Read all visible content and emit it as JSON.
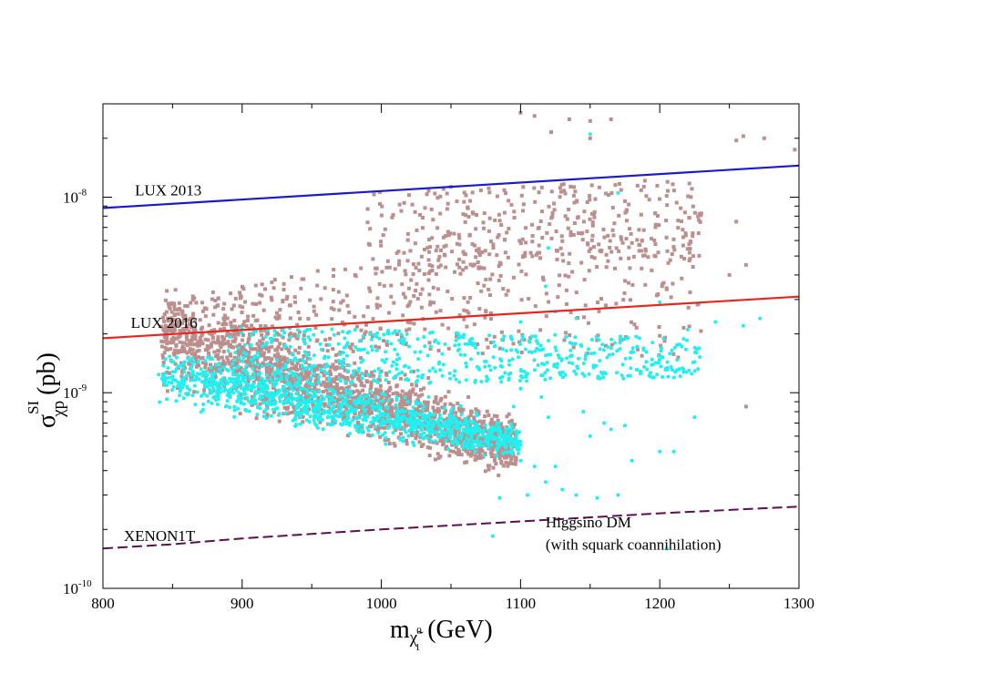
{
  "chart_data": {
    "type": "scatter",
    "title": "",
    "xlabel": "m(GeV)",
    "xlabel_parts": {
      "base": "m",
      "sub": "χ̃",
      "sub_sup": "0",
      "sub_sub": "1",
      "unit": "(GeV)"
    },
    "ylabel": "σ SI χp (pb)",
    "ylabel_parts": {
      "base": "σ",
      "sup": "SI",
      "sub": "χp",
      "unit": "(pb)"
    },
    "xlim": [
      800,
      1300
    ],
    "ylim": [
      1e-10,
      3e-08
    ],
    "yscale": "log",
    "x_ticks": [
      800,
      900,
      1000,
      1100,
      1200,
      1300
    ],
    "x_tick_labels": [
      "800",
      "900",
      "1000",
      "1100",
      "1200",
      "1300"
    ],
    "y_ticks": [
      {
        "value": 1e-10,
        "base": "10",
        "exp": "-10"
      },
      {
        "value": 1e-09,
        "base": "10",
        "exp": "-9"
      },
      {
        "value": 1e-08,
        "base": "10",
        "exp": "-8"
      }
    ],
    "lines": [
      {
        "name": "LUX 2013",
        "color": "#1a1acc",
        "dash": "solid",
        "x": [
          800,
          1300
        ],
        "y": [
          8.8e-09,
          1.45e-08
        ]
      },
      {
        "name": "LUX 2016",
        "color": "#e8251e",
        "dash": "solid",
        "x": [
          800,
          1300
        ],
        "y": [
          1.9e-09,
          3.1e-09
        ]
      },
      {
        "name": "XENON1T",
        "color": "#5a1050",
        "dash": "dashed",
        "x": [
          800,
          850,
          900,
          1000,
          1100,
          1200,
          1300
        ],
        "y": [
          1.6e-10,
          1.68e-10,
          1.8e-10,
          2e-10,
          2.2e-10,
          2.42e-10,
          2.62e-10
        ]
      }
    ],
    "series": [
      {
        "name": "brown points",
        "color": "#bc8f8f",
        "marker": "square",
        "regions": [
          {
            "shape": "band",
            "count": 1800,
            "x": [
              842,
              1097
            ],
            "ycenter": [
              1.9e-09,
              5.3e-10
            ],
            "spread": 0.11
          },
          {
            "shape": "cloud",
            "count": 520,
            "x": [
              842,
              1230
            ],
            "ylow": [
              1.7e-09,
              1.5e-09
            ],
            "yhigh": [
              2.9e-09,
              1.1e-08
            ]
          },
          {
            "shape": "cloud",
            "count": 320,
            "x": [
              990,
              1230
            ],
            "ylow": [
              4e-09,
              5e-09
            ],
            "yhigh": [
              1.1e-08,
              1.25e-08
            ]
          }
        ],
        "extra_points": [
          {
            "x": 1100,
            "y": 2.7e-08
          },
          {
            "x": 1110,
            "y": 2.6e-08
          },
          {
            "x": 1135,
            "y": 2.5e-08
          },
          {
            "x": 1150,
            "y": 2.45e-08
          },
          {
            "x": 1165,
            "y": 2.5e-08
          },
          {
            "x": 1122,
            "y": 2.15e-08
          },
          {
            "x": 1150,
            "y": 2e-08
          },
          {
            "x": 1255,
            "y": 1.95e-08
          },
          {
            "x": 1260,
            "y": 2.05e-08
          },
          {
            "x": 1275,
            "y": 2e-08
          },
          {
            "x": 1297,
            "y": 1.75e-08
          },
          {
            "x": 1255,
            "y": 7.5e-09
          },
          {
            "x": 1262,
            "y": 4.5e-09
          },
          {
            "x": 1262,
            "y": 8.5e-10
          },
          {
            "x": 1250,
            "y": 4e-09
          }
        ]
      },
      {
        "name": "cyan points",
        "color": "#20f0f0",
        "marker": "circle",
        "regions": [
          {
            "shape": "band",
            "count": 1100,
            "x": [
              840,
              1100
            ],
            "ycenter": [
              1.25e-09,
              5.6e-10
            ],
            "spread": 0.07
          },
          {
            "shape": "cloud",
            "count": 560,
            "x": [
              890,
              1232
            ],
            "ylow": [
              1.05e-09,
              1.2e-09
            ],
            "yhigh": [
              2.2e-09,
              1.9e-09
            ]
          }
        ],
        "extra_points": [
          {
            "x": 1085,
            "y": 2.9e-10
          },
          {
            "x": 1080,
            "y": 1.85e-10
          },
          {
            "x": 1100,
            "y": 4.5e-10
          },
          {
            "x": 1105,
            "y": 3e-10
          },
          {
            "x": 1110,
            "y": 4.2e-10
          },
          {
            "x": 1118,
            "y": 3.5e-10
          },
          {
            "x": 1120,
            "y": 7.5e-10
          },
          {
            "x": 1125,
            "y": 4.2e-10
          },
          {
            "x": 1130,
            "y": 3.2e-10
          },
          {
            "x": 1140,
            "y": 3e-10
          },
          {
            "x": 1145,
            "y": 8e-10
          },
          {
            "x": 1150,
            "y": 6e-10
          },
          {
            "x": 1155,
            "y": 2.9e-10
          },
          {
            "x": 1160,
            "y": 7e-10
          },
          {
            "x": 1165,
            "y": 6.5e-10
          },
          {
            "x": 1170,
            "y": 3e-10
          },
          {
            "x": 1175,
            "y": 6.8e-10
          },
          {
            "x": 1180,
            "y": 4.5e-10
          },
          {
            "x": 1200,
            "y": 5e-10
          },
          {
            "x": 1200,
            "y": 2.9e-09
          },
          {
            "x": 1100,
            "y": 2.3e-09
          },
          {
            "x": 1125,
            "y": 2.6e-09
          },
          {
            "x": 1140,
            "y": 2.4e-09
          },
          {
            "x": 1225,
            "y": 7.5e-10
          },
          {
            "x": 1220,
            "y": 2.1e-09
          },
          {
            "x": 1240,
            "y": 2.3e-09
          },
          {
            "x": 1272,
            "y": 2.4e-09
          },
          {
            "x": 1260,
            "y": 2.2e-09
          },
          {
            "x": 1150,
            "y": 2.1e-08
          },
          {
            "x": 1170,
            "y": 1.05e-08
          },
          {
            "x": 1120,
            "y": 5.5e-09
          },
          {
            "x": 1118,
            "y": 3.5e-09
          },
          {
            "x": 1100,
            "y": 1.05e-09
          },
          {
            "x": 1115,
            "y": 9.5e-10
          },
          {
            "x": 1210,
            "y": 5e-10
          },
          {
            "x": 1205,
            "y": 1.6e-10
          },
          {
            "x": 1135,
            "y": 1e-10
          },
          {
            "x": 1095,
            "y": 8.5e-10
          }
        ]
      }
    ],
    "annotations": [
      {
        "text": "LUX 2013",
        "x": 823,
        "y": 1.02e-08
      },
      {
        "text": "LUX 2016",
        "x": 820,
        "y": 2.15e-09
      },
      {
        "text": "XENON1T",
        "x": 815,
        "y": 1.75e-10
      },
      {
        "text": "Higgsino DM",
        "x": 1118,
        "y": 2.05e-10
      },
      {
        "text": "(with squark coannihilation)",
        "x": 1118,
        "y": 1.58e-10
      }
    ]
  }
}
